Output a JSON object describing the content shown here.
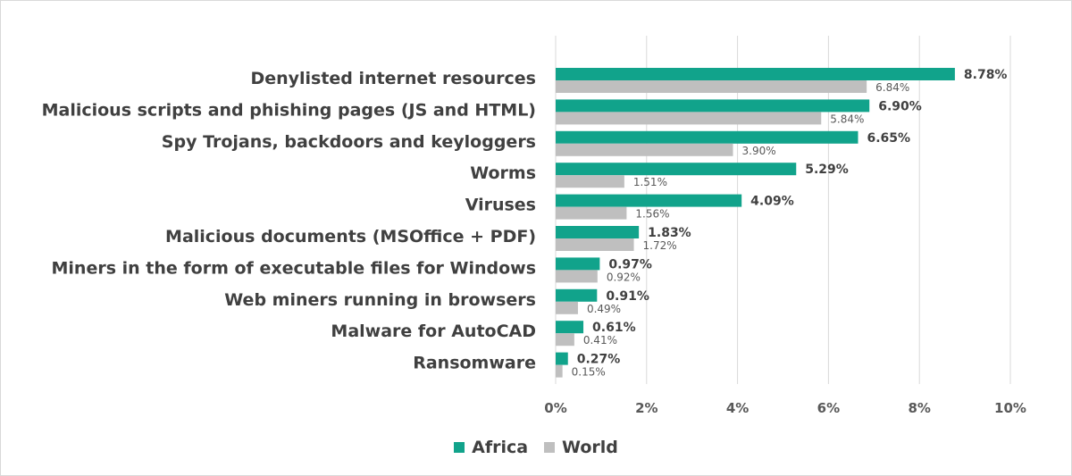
{
  "chart_data": {
    "type": "bar",
    "orientation": "horizontal",
    "categories": [
      "Denylisted internet resources",
      "Malicious scripts and phishing pages (JS and HTML)",
      "Spy Trojans, backdoors and keyloggers",
      "Worms",
      "Viruses",
      "Malicious documents (MSOffice + PDF)",
      "Miners in the form of executable files for Windows",
      "Web miners running in browsers",
      "Malware for AutoCAD",
      "Ransomware"
    ],
    "series": [
      {
        "name": "Africa",
        "color": "#11a38b",
        "values": [
          8.78,
          6.9,
          6.65,
          5.29,
          4.09,
          1.83,
          0.97,
          0.91,
          0.61,
          0.27
        ],
        "labels": [
          "8.78%",
          "6.90%",
          "6.65%",
          "5.29%",
          "4.09%",
          "1.83%",
          "0.97%",
          "0.91%",
          "0.61%",
          "0.27%"
        ]
      },
      {
        "name": "World",
        "color": "#bfbfbf",
        "values": [
          6.84,
          5.84,
          3.9,
          1.51,
          1.56,
          1.72,
          0.92,
          0.49,
          0.41,
          0.15
        ],
        "labels": [
          "6.84%",
          "5.84%",
          "3.90%",
          "1.51%",
          "1.56%",
          "1.72%",
          "0.92%",
          "0.49%",
          "0.41%",
          "0.15%"
        ]
      }
    ],
    "xlim": [
      0,
      10
    ],
    "xticks": [
      0,
      2,
      4,
      6,
      8,
      10
    ],
    "xtick_labels": [
      "0%",
      "2%",
      "4%",
      "6%",
      "8%",
      "10%"
    ],
    "grid": true,
    "legend_position": "bottom-center",
    "title": "",
    "xlabel": "",
    "ylabel": ""
  }
}
